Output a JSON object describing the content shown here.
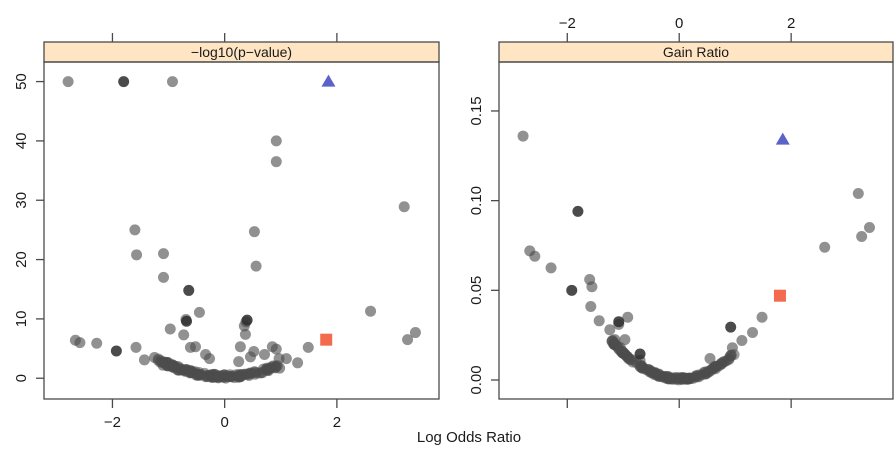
{
  "chart_data": {
    "type": "scatter",
    "xlabel": "Log Odds Ratio",
    "grid": false,
    "colors": {
      "point": "#4d4d4d",
      "point_dark": "#2b2b2b",
      "triangle": "#5b63c9",
      "square": "#f26b4f",
      "strip": "#ffe5c4",
      "axis": "#4a4a4a"
    },
    "panels": [
      {
        "title": "−log10(p−value)",
        "xlim": [
          -3.22,
          3.82
        ],
        "ylim": [
          -3.5,
          53.3
        ],
        "x_ticks": [
          -2,
          0,
          2
        ],
        "x_tick_labels": [
          "−2",
          "0",
          "2"
        ],
        "x_labels_side": "bottom",
        "y_ticks": [
          0,
          10,
          20,
          30,
          40,
          50
        ],
        "y_tick_labels": [
          "0",
          "10",
          "20",
          "30",
          "40",
          "50"
        ],
        "points": [
          [
            -2.79,
            50
          ],
          [
            -0.93,
            50
          ],
          [
            0.92,
            40
          ],
          [
            0.92,
            36.5
          ],
          [
            3.2,
            28.9
          ],
          [
            -1.6,
            25
          ],
          [
            0.53,
            24.7
          ],
          [
            -1.57,
            20.8
          ],
          [
            -1.09,
            21
          ],
          [
            0.56,
            18.9
          ],
          [
            -1.09,
            17
          ],
          [
            -0.45,
            11.1
          ],
          [
            -0.69,
            9.9
          ],
          [
            2.6,
            11.3
          ],
          [
            0.38,
            9.5
          ],
          [
            0.35,
            8.8
          ],
          [
            -0.97,
            8.3
          ],
          [
            -0.73,
            7.3
          ],
          [
            0.37,
            7.4
          ],
          [
            3.26,
            6.5
          ],
          [
            3.4,
            7.7
          ],
          [
            -2.66,
            6.4
          ],
          [
            -2.58,
            6.0
          ],
          [
            -2.28,
            5.9
          ],
          [
            -1.58,
            5.2
          ],
          [
            -1.43,
            3.1
          ],
          [
            -1.25,
            3.5
          ],
          [
            -0.61,
            5.2
          ],
          [
            -0.52,
            5.3
          ],
          [
            -0.34,
            4.0
          ],
          [
            -0.27,
            3.3
          ],
          [
            0.28,
            5.3
          ],
          [
            0.52,
            4.5
          ],
          [
            0.46,
            3.6
          ],
          [
            0.71,
            4.0
          ],
          [
            0.85,
            5.3
          ],
          [
            0.92,
            4.9
          ],
          [
            0.97,
            3.3
          ],
          [
            1.1,
            3.3
          ],
          [
            1.49,
            5.2
          ],
          [
            1.3,
            2.6
          ],
          [
            0.98,
            1.7
          ],
          [
            0.25,
            2.8
          ],
          [
            -0.9,
            1.9
          ],
          [
            -1.1,
            2.2
          ]
        ],
        "dark_points": [
          [
            -1.8,
            50
          ],
          [
            -0.64,
            14.8
          ],
          [
            -1.93,
            4.6
          ],
          [
            0.4,
            9.8
          ],
          [
            -0.68,
            9.6
          ]
        ],
        "cluster": {
          "x_range": [
            -1.2,
            1.0
          ],
          "count": 140,
          "coef": 2.0,
          "jitter": 0.6
        },
        "triangle": [
          1.85,
          50
        ],
        "square": [
          1.81,
          6.5
        ]
      },
      {
        "title": "Gain Ratio",
        "xlim": [
          -3.22,
          3.82
        ],
        "ylim": [
          -0.0106,
          0.1773
        ],
        "x_ticks": [
          -2,
          0,
          2
        ],
        "x_tick_labels": [
          "−2",
          "0",
          "2"
        ],
        "x_labels_side": "top",
        "y_ticks": [
          0.0,
          0.05,
          0.1,
          0.15
        ],
        "y_tick_labels": [
          "0.00",
          "0.05",
          "0.10",
          "0.15"
        ],
        "points": [
          [
            -2.79,
            0.136
          ],
          [
            3.2,
            0.104
          ],
          [
            3.4,
            0.085
          ],
          [
            -2.67,
            0.072
          ],
          [
            -2.58,
            0.069
          ],
          [
            -2.29,
            0.0625
          ],
          [
            -1.6,
            0.056
          ],
          [
            -1.56,
            0.052
          ],
          [
            -1.58,
            0.041
          ],
          [
            -1.43,
            0.033
          ],
          [
            -1.24,
            0.028
          ],
          [
            -1.08,
            0.031
          ],
          [
            -0.92,
            0.035
          ],
          [
            -1.15,
            0.0225
          ],
          [
            -0.97,
            0.0225
          ],
          [
            2.6,
            0.074
          ],
          [
            3.26,
            0.08
          ],
          [
            1.12,
            0.022
          ],
          [
            1.31,
            0.0265
          ],
          [
            1.48,
            0.035
          ],
          [
            -1.05,
            0.018
          ],
          [
            0.95,
            0.018
          ],
          [
            0.55,
            0.012
          ],
          [
            -0.7,
            0.011
          ]
        ],
        "dark_points": [
          [
            -1.81,
            0.094
          ],
          [
            -1.92,
            0.05
          ],
          [
            -1.08,
            0.0325
          ],
          [
            0.92,
            0.0295
          ],
          [
            -0.7,
            0.0145
          ]
        ],
        "cluster": {
          "x_range": [
            -1.2,
            1.0
          ],
          "count": 140,
          "coef": 0.0145,
          "jitter": 0.0015
        },
        "triangle": [
          1.85,
          0.134
        ],
        "square": [
          1.8,
          0.047
        ]
      }
    ]
  }
}
